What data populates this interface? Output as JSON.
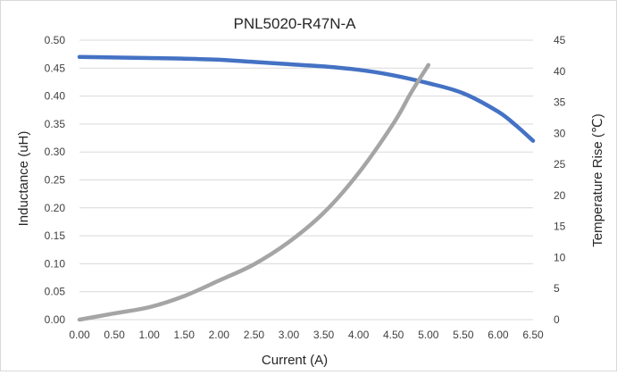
{
  "chart_data": {
    "type": "line",
    "title": "PNL5020-R47N-A",
    "xlabel": "Current (A)",
    "ylabel": "Inductance (uH)",
    "y2label": "Temperature Rise (℃)",
    "xlim": [
      0,
      6.5
    ],
    "ylim": [
      0,
      0.5
    ],
    "y2lim": [
      0,
      45
    ],
    "x_ticks": [
      "0.00",
      "0.50",
      "1.00",
      "1.50",
      "2.00",
      "2.50",
      "3.00",
      "3.50",
      "4.00",
      "4.50",
      "5.00",
      "5.50",
      "6.00",
      "6.50"
    ],
    "y_ticks": [
      "0.00",
      "0.05",
      "0.10",
      "0.15",
      "0.20",
      "0.25",
      "0.30",
      "0.35",
      "0.40",
      "0.45",
      "0.50"
    ],
    "y2_ticks": [
      "0",
      "5",
      "10",
      "15",
      "20",
      "25",
      "30",
      "35",
      "40",
      "45"
    ],
    "grid": true,
    "legend": "none",
    "series": [
      {
        "axis": "left",
        "color": "#4472c4",
        "x": [
          0,
          0.5,
          1.0,
          1.5,
          2.0,
          2.5,
          3.0,
          3.5,
          4.0,
          4.5,
          5.0,
          5.5,
          6.0,
          6.25,
          6.5
        ],
        "y": [
          0.47,
          0.469,
          0.468,
          0.467,
          0.465,
          0.461,
          0.457,
          0.453,
          0.447,
          0.437,
          0.423,
          0.405,
          0.372,
          0.348,
          0.32
        ]
      },
      {
        "axis": "right",
        "color": "#a5a5a5",
        "x": [
          0,
          0.5,
          1.0,
          1.5,
          2.0,
          2.5,
          3.0,
          3.5,
          4.0,
          4.5,
          4.75,
          5.0
        ],
        "y": [
          0,
          1.0,
          2.0,
          3.8,
          6.3,
          8.9,
          12.5,
          17.2,
          23.6,
          31.6,
          36.5,
          41.0
        ]
      }
    ]
  }
}
